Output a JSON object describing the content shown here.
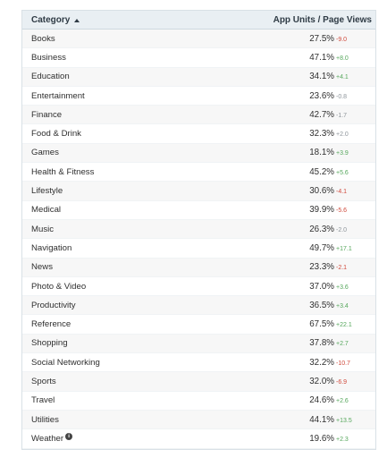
{
  "header": {
    "category_label": "Category",
    "metric_label": "App Units / Page Views"
  },
  "rows": [
    {
      "category": "Books",
      "value": "27.5%",
      "delta": "-9.0",
      "trend": "neg"
    },
    {
      "category": "Business",
      "value": "47.1%",
      "delta": "+8.0",
      "trend": "pos"
    },
    {
      "category": "Education",
      "value": "34.1%",
      "delta": "+4.1",
      "trend": "pos"
    },
    {
      "category": "Entertainment",
      "value": "23.6%",
      "delta": "-0.8",
      "trend": "neutral"
    },
    {
      "category": "Finance",
      "value": "42.7%",
      "delta": "-1.7",
      "trend": "neutral"
    },
    {
      "category": "Food & Drink",
      "value": "32.3%",
      "delta": "+2.0",
      "trend": "neutral"
    },
    {
      "category": "Games",
      "value": "18.1%",
      "delta": "+3.9",
      "trend": "pos"
    },
    {
      "category": "Health & Fitness",
      "value": "45.2%",
      "delta": "+5.6",
      "trend": "pos"
    },
    {
      "category": "Lifestyle",
      "value": "30.6%",
      "delta": "-4.1",
      "trend": "neg"
    },
    {
      "category": "Medical",
      "value": "39.9%",
      "delta": "-5.6",
      "trend": "neg"
    },
    {
      "category": "Music",
      "value": "26.3%",
      "delta": "-2.0",
      "trend": "neutral"
    },
    {
      "category": "Navigation",
      "value": "49.7%",
      "delta": "+17.1",
      "trend": "pos"
    },
    {
      "category": "News",
      "value": "23.3%",
      "delta": "-2.1",
      "trend": "neg"
    },
    {
      "category": "Photo & Video",
      "value": "37.0%",
      "delta": "+3.6",
      "trend": "pos"
    },
    {
      "category": "Productivity",
      "value": "36.5%",
      "delta": "+3.4",
      "trend": "pos"
    },
    {
      "category": "Reference",
      "value": "67.5%",
      "delta": "+22.1",
      "trend": "pos"
    },
    {
      "category": "Shopping",
      "value": "37.8%",
      "delta": "+2.7",
      "trend": "pos"
    },
    {
      "category": "Social Networking",
      "value": "32.2%",
      "delta": "-10.7",
      "trend": "neg"
    },
    {
      "category": "Sports",
      "value": "32.0%",
      "delta": "-6.9",
      "trend": "neg"
    },
    {
      "category": "Travel",
      "value": "24.6%",
      "delta": "+2.6",
      "trend": "pos"
    },
    {
      "category": "Utilities",
      "value": "44.1%",
      "delta": "+13.5",
      "trend": "pos"
    },
    {
      "category": "Weather",
      "value": "19.6%",
      "delta": "+2.3",
      "trend": "pos",
      "info_icon": "info-icon"
    }
  ],
  "colors": {
    "header_bg": "#e9eff3",
    "row_alt_bg": "#f7f7f7",
    "positive": "#56a75c",
    "negative": "#d04a3c",
    "neutral": "#8e959b"
  }
}
